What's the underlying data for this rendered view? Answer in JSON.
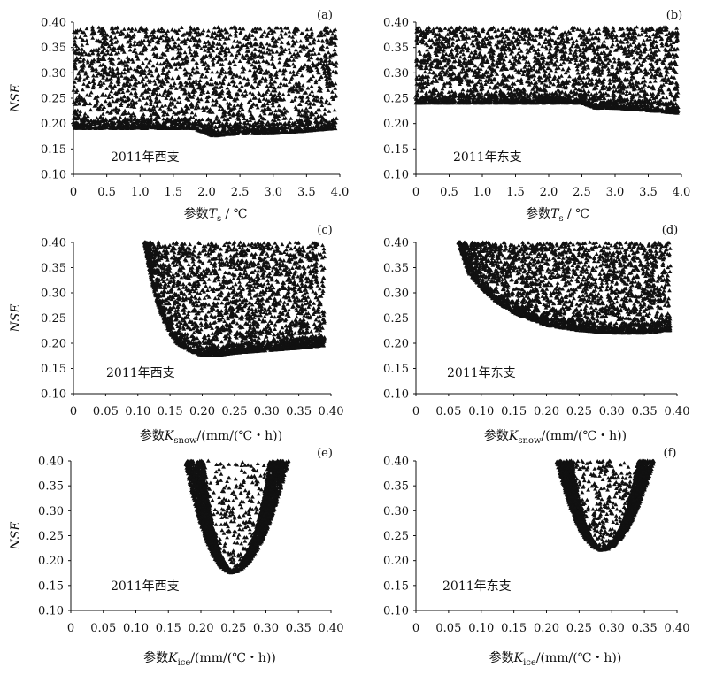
{
  "chart_data": [
    {
      "type": "scatter",
      "panel": "(a)",
      "annotation": "2011年西支",
      "ylabel": "NSE",
      "xlabel": {
        "prefix": "参数",
        "symbol": "T",
        "subscript": "s",
        "unit": " / ℃"
      },
      "xlim": [
        0,
        4.0
      ],
      "ylim": [
        0.1,
        0.4
      ],
      "xticks": [
        "0",
        "0.5",
        "1.0",
        "1.5",
        "2.0",
        "2.5",
        "3.0",
        "3.5",
        "4.0"
      ],
      "yticks": [
        "0.10",
        "0.15",
        "0.20",
        "0.25",
        "0.30",
        "0.35",
        "0.40"
      ],
      "marker": "triangle",
      "series": [
        {
          "x": [
            0,
            0.5,
            1.0,
            1.5,
            1.8,
            2.1,
            2.5,
            3.0,
            3.5,
            3.95
          ],
          "y_min": [
            0.19,
            0.19,
            0.19,
            0.19,
            0.19,
            0.175,
            0.18,
            0.18,
            0.185,
            0.19
          ],
          "y_max": [
            0.39,
            0.39,
            0.39,
            0.39,
            0.39,
            0.39,
            0.39,
            0.39,
            0.39,
            0.39
          ]
        }
      ]
    },
    {
      "type": "scatter",
      "panel": "(b)",
      "annotation": "2011年东支",
      "ylabel": "",
      "xlabel": {
        "prefix": "参数",
        "symbol": "T",
        "subscript": "s",
        "unit": " / ℃"
      },
      "xlim": [
        0,
        4.0
      ],
      "ylim": [
        0.1,
        0.4
      ],
      "xticks": [
        "0",
        "0.5",
        "1.0",
        "1.5",
        "2.0",
        "2.5",
        "3.0",
        "3.5",
        "4.0"
      ],
      "yticks": [
        "0.10",
        "0.15",
        "0.20",
        "0.25",
        "0.30",
        "0.35",
        "0.40"
      ],
      "marker": "triangle",
      "series": [
        {
          "x": [
            0,
            0.5,
            1.0,
            1.5,
            2.0,
            2.5,
            2.7,
            3.0,
            3.5,
            3.95
          ],
          "y_min": [
            0.24,
            0.24,
            0.24,
            0.24,
            0.24,
            0.24,
            0.23,
            0.23,
            0.225,
            0.22
          ],
          "y_max": [
            0.39,
            0.39,
            0.39,
            0.39,
            0.39,
            0.39,
            0.39,
            0.39,
            0.39,
            0.39
          ]
        }
      ]
    },
    {
      "type": "scatter",
      "panel": "(c)",
      "annotation": "2011年西支",
      "ylabel": "NSE",
      "xlabel": {
        "prefix": "参数",
        "symbol": "K",
        "subscript": "snow",
        "unit": "/(mm/(℃・h))"
      },
      "xlim": [
        0,
        0.4
      ],
      "ylim": [
        0.1,
        0.4
      ],
      "xticks": [
        "0",
        "0.05",
        "0.10",
        "0.15",
        "0.20",
        "0.25",
        "0.30",
        "0.35",
        "0.40"
      ],
      "yticks": [
        "0.10",
        "0.15",
        "0.20",
        "0.25",
        "0.30",
        "0.35",
        "0.40"
      ],
      "marker": "triangle",
      "series": [
        {
          "x": [
            0.11,
            0.12,
            0.13,
            0.14,
            0.15,
            0.16,
            0.18,
            0.2,
            0.22,
            0.25,
            0.3,
            0.35,
            0.39
          ],
          "y_min": [
            0.4,
            0.33,
            0.28,
            0.245,
            0.22,
            0.2,
            0.185,
            0.175,
            0.175,
            0.18,
            0.185,
            0.19,
            0.195
          ],
          "y_max": [
            0.4,
            0.4,
            0.4,
            0.4,
            0.4,
            0.4,
            0.4,
            0.4,
            0.4,
            0.4,
            0.4,
            0.4,
            0.4
          ]
        }
      ]
    },
    {
      "type": "scatter",
      "panel": "(d)",
      "annotation": "2011年东支",
      "ylabel": "",
      "xlabel": {
        "prefix": "参数",
        "symbol": "K",
        "subscript": "snow",
        "unit": "/(mm/(℃・h))"
      },
      "xlim": [
        0,
        0.4
      ],
      "ylim": [
        0.1,
        0.4
      ],
      "xticks": [
        "0",
        "0.05",
        "0.10",
        "0.15",
        "0.20",
        "0.25",
        "0.30",
        "0.35",
        "0.40"
      ],
      "yticks": [
        "0.10",
        "0.15",
        "0.20",
        "0.25",
        "0.30",
        "0.35",
        "0.40"
      ],
      "marker": "triangle",
      "series": [
        {
          "x": [
            0.065,
            0.08,
            0.1,
            0.12,
            0.15,
            0.18,
            0.2,
            0.25,
            0.3,
            0.35,
            0.39
          ],
          "y_min": [
            0.4,
            0.34,
            0.31,
            0.285,
            0.26,
            0.245,
            0.235,
            0.225,
            0.22,
            0.22,
            0.225
          ],
          "y_max": [
            0.4,
            0.4,
            0.4,
            0.4,
            0.4,
            0.4,
            0.4,
            0.4,
            0.4,
            0.4,
            0.4
          ]
        }
      ]
    },
    {
      "type": "scatter",
      "panel": "(e)",
      "annotation": "2011年西支",
      "ylabel": "NSE",
      "xlabel": {
        "prefix": "参数",
        "symbol": "K",
        "subscript": "ice",
        "unit": "/(mm/(℃・h))"
      },
      "xlim": [
        0,
        0.4
      ],
      "ylim": [
        0.1,
        0.4
      ],
      "xticks": [
        "0",
        "0.05",
        "0.10",
        "0.15",
        "0.20",
        "0.25",
        "0.30",
        "0.35",
        "0.40"
      ],
      "yticks": [
        "0.10",
        "0.15",
        "0.20",
        "0.25",
        "0.30",
        "0.35",
        "0.40"
      ],
      "marker": "triangle",
      "series": [
        {
          "vertex": [
            0.247,
            0.175
          ],
          "left_edge_at_top": 0.175,
          "right_edge_at_top": 0.335,
          "band_width": 0.03,
          "y_max": 0.4
        }
      ]
    },
    {
      "type": "scatter",
      "panel": "(f)",
      "annotation": "2011年东支",
      "ylabel": "",
      "xlabel": {
        "prefix": "参数",
        "symbol": "K",
        "subscript": "ice",
        "unit": "/(mm/(℃・h))"
      },
      "xlim": [
        0,
        0.4
      ],
      "ylim": [
        0.1,
        0.4
      ],
      "xticks": [
        "0",
        "0.05",
        "0.10",
        "0.15",
        "0.20",
        "0.25",
        "0.30",
        "0.35",
        "0.40"
      ],
      "yticks": [
        "0.10",
        "0.15",
        "0.20",
        "0.25",
        "0.30",
        "0.35",
        "0.40"
      ],
      "marker": "triangle",
      "series": [
        {
          "vertex": [
            0.285,
            0.22
          ],
          "left_edge_at_top": 0.215,
          "right_edge_at_top": 0.365,
          "band_width": 0.025,
          "y_max": 0.4
        }
      ]
    }
  ]
}
